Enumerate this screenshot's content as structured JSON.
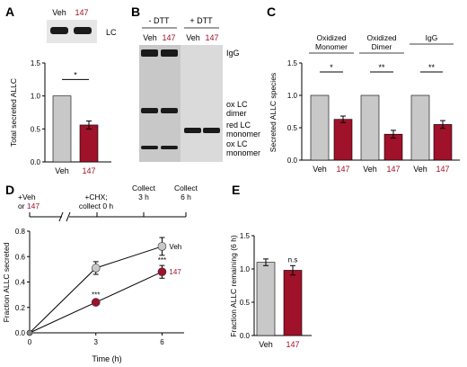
{
  "colors": {
    "veh": "#c8c8c8",
    "drug": "#a0112a",
    "axis": "#000000",
    "blotBg": "#e0e0e0",
    "band": "#1a1a1a"
  },
  "panel_letters": {
    "A": "A",
    "B": "B",
    "C": "C",
    "D": "D",
    "E": "E"
  },
  "panelA": {
    "blot_header": [
      "Veh",
      "147"
    ],
    "blot_label": "LC"
  },
  "panelB": {
    "groups": [
      "- DTT",
      "+ DTT"
    ],
    "lanes": [
      "Veh",
      "147",
      "Veh",
      "147"
    ],
    "band_labels": {
      "igg": "IgG",
      "dimer_1": "ox LC",
      "dimer_2": "dimer",
      "red_1": "red LC",
      "red_2": "monomer",
      "mono_1": "ox LC",
      "mono_2": "monomer"
    }
  },
  "panelD_timeline": {
    "start_1": "+Veh",
    "start_2_prefix": "or ",
    "start_2_drug": "147",
    "chx_1": "+CHX;",
    "chx_2": "collect 0 h",
    "c3_1": "Collect",
    "c3_2": "3 h",
    "c6_1": "Collect",
    "c6_2": "6 h"
  },
  "chart_data": [
    {
      "id": "A",
      "type": "bar",
      "categories": [
        "Veh",
        "147"
      ],
      "values": [
        1.0,
        0.56
      ],
      "errors": [
        0,
        0.06
      ],
      "ylabel": "Total secreted ALLC",
      "ylim": [
        0,
        1.5
      ],
      "yticks": [
        "0.0",
        "0.5",
        "1.0",
        "1.5"
      ],
      "significance": [
        "*"
      ]
    },
    {
      "id": "C",
      "type": "bar",
      "groups": [
        {
          "label_1": "Oxidized",
          "label_2": "Monomer",
          "values": [
            1.0,
            0.63
          ],
          "errors": [
            0,
            0.05
          ],
          "sig": "*"
        },
        {
          "label_1": "Oxidized",
          "label_2": "Dimer",
          "values": [
            1.0,
            0.4
          ],
          "errors": [
            0,
            0.06
          ],
          "sig": "**"
        },
        {
          "label_1": "IgG",
          "label_2": "",
          "values": [
            1.0,
            0.55
          ],
          "errors": [
            0,
            0.06
          ],
          "sig": "**"
        }
      ],
      "categories": [
        "Veh",
        "147"
      ],
      "ylabel": "Secreted ALLC species",
      "ylim": [
        0,
        1.5
      ],
      "yticks": [
        "0.0",
        "0.5",
        "1.0",
        "1.5"
      ]
    },
    {
      "id": "D",
      "type": "line",
      "xlabel": "Time (h)",
      "ylabel": "Fraction ALLC secreted",
      "xlim": [
        0,
        7
      ],
      "ylim": [
        0,
        0.8
      ],
      "xticks": [
        "0",
        "3",
        "6"
      ],
      "yticks": [
        "0.0",
        "0.2",
        "0.4",
        "0.6",
        "0.8"
      ],
      "series": [
        {
          "name": "Veh",
          "x": [
            0,
            3,
            6
          ],
          "y": [
            0,
            0.51,
            0.68
          ],
          "err": [
            0,
            0.05,
            0.07
          ]
        },
        {
          "name": "147",
          "x": [
            0,
            3,
            6
          ],
          "y": [
            0,
            0.24,
            0.48
          ],
          "err": [
            0,
            0.02,
            0.05
          ]
        }
      ],
      "significance": [
        {
          "x": 3,
          "label": "***"
        },
        {
          "x": 6,
          "label": "***"
        }
      ]
    },
    {
      "id": "E",
      "type": "bar",
      "categories": [
        "Veh",
        "147"
      ],
      "values": [
        1.1,
        0.98
      ],
      "errors": [
        0.05,
        0.07
      ],
      "ylabel": "Fraction ALLC remaining (6 h)",
      "ylim": [
        0,
        1.5
      ],
      "yticks": [
        "0.0",
        "0.5",
        "1.0",
        "1.5"
      ],
      "annotation": "n.s"
    }
  ]
}
